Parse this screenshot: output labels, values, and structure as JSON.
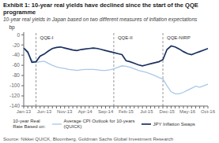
{
  "chart_data": {
    "type": "line",
    "title": "Exhibit 1: 10-year real yields have declined since the start of the QQE programme",
    "subtitle": "10-year real yields in Japan based on two different measures of inflation expectations",
    "source": "Source: Nikkei QUICK, Bloomberg, Goldman Sachs Global Investment Research",
    "y_label": "bp",
    "legend_title": "10-year Real\nRate Based on:",
    "categories": [
      "Jan-13",
      null,
      null,
      null,
      null,
      "Jun-13",
      null,
      null,
      null,
      null,
      "Nov-13",
      null,
      null,
      null,
      null,
      "Apr-14",
      null,
      null,
      null,
      null,
      "Sep-14",
      null,
      null,
      null,
      null,
      "Feb-15",
      null,
      null,
      null,
      null,
      "Jul-15",
      null,
      null,
      null,
      null,
      "Dec-15",
      null,
      null,
      null,
      null,
      "May-16",
      null,
      null,
      null,
      null,
      "Oct-16"
    ],
    "series": [
      {
        "name": "Average CPI Outlook for 10-years\n(QUICK)",
        "color": "#a8c8e8",
        "values": [
          -26,
          -36,
          -50,
          -54,
          -53,
          -52,
          -56,
          -60,
          -63,
          -65,
          -66,
          -68,
          -69,
          -70,
          -69,
          -68,
          -68,
          -68,
          -69,
          -70,
          -70,
          -69,
          -67,
          -64,
          -61,
          -62,
          -64,
          -67,
          -70,
          -72,
          -74,
          -77,
          -80,
          -84,
          -87,
          -100,
          -112,
          -116,
          -116,
          -113,
          -109,
          -105,
          -101,
          -103,
          -100,
          -97
        ]
      },
      {
        "name": "JPY Inflation Swaps",
        "color": "#1a3060",
        "values": [
          -26,
          -34,
          -54,
          -53,
          -42,
          -38,
          -32,
          -27,
          -25,
          -24,
          -26,
          -28,
          -30,
          -31,
          -29,
          -28,
          -27,
          -26,
          -27,
          -29,
          -31,
          -33,
          -35,
          -37,
          -39,
          -51,
          -53,
          -56,
          -59,
          -61,
          -59,
          -57,
          -55,
          -53,
          -49,
          -29,
          -22,
          -24,
          -28,
          -33,
          -37,
          -39,
          -36,
          -33,
          -30,
          -27
        ]
      }
    ],
    "ylim": [
      -140,
      5
    ],
    "yticks": [
      -140,
      -120,
      -100,
      -80,
      -60,
      -40,
      -20,
      0
    ],
    "grid": false,
    "legend": "bottom",
    "annotations": [
      {
        "text": "QQE-I",
        "x": 3,
        "color": "#999999"
      },
      {
        "text": "QQE-II",
        "x": 22,
        "color": "#999999"
      },
      {
        "text": "QQE-NIRP",
        "x": 34,
        "color": "#999999"
      }
    ]
  }
}
